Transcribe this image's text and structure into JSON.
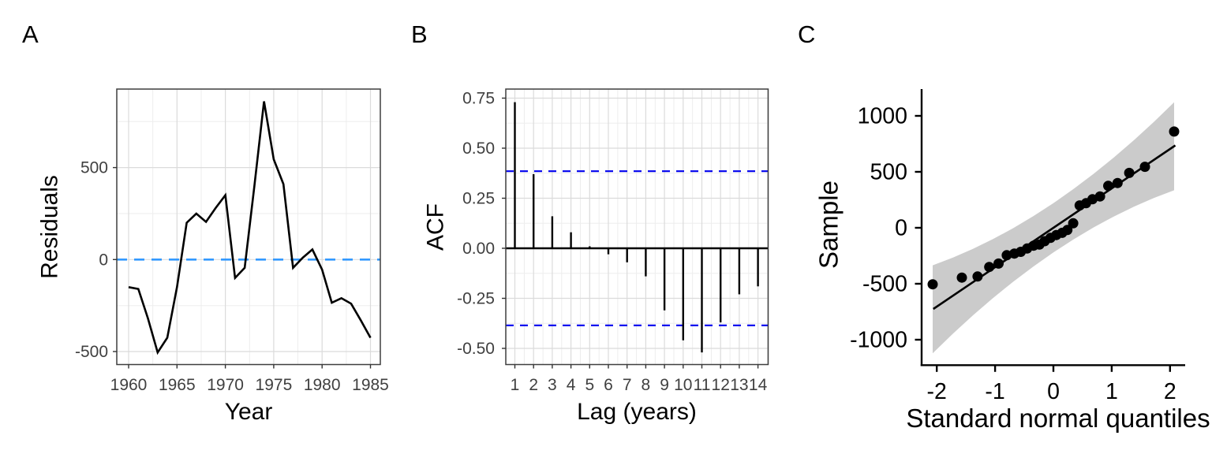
{
  "figure": {
    "background": "#FFFFFF"
  },
  "colors": {
    "series": "#000000",
    "grid_major": "#DBDBDB",
    "grid_minor": "#EDEDED",
    "panel_border": "#3F3F3F",
    "tick_mark": "#333333",
    "a_reference": "#3399FF",
    "b_reference": "#0000EE",
    "band": "#CBCBCB"
  },
  "chart_data": [
    {
      "panel_label": "A",
      "type": "line",
      "title": "",
      "xlabel": "Year",
      "ylabel": "Residuals",
      "x": [
        1960,
        1961,
        1962,
        1963,
        1964,
        1965,
        1966,
        1967,
        1968,
        1969,
        1970,
        1971,
        1972,
        1973,
        1974,
        1975,
        1976,
        1977,
        1978,
        1979,
        1980,
        1981,
        1982,
        1983,
        1984,
        1985
      ],
      "values": [
        -150,
        -160,
        -320,
        -505,
        -425,
        -150,
        200,
        250,
        205,
        280,
        350,
        -100,
        -45,
        400,
        860,
        545,
        410,
        -45,
        10,
        55,
        -55,
        -235,
        -210,
        -240,
        -330,
        -425
      ],
      "x_ticks": {
        "values": [
          1960,
          1965,
          1970,
          1975,
          1980,
          1985
        ],
        "labels": [
          "1960",
          "1965",
          "1970",
          "1975",
          "1980",
          "1985"
        ]
      },
      "y_ticks": {
        "values": [
          500,
          0,
          -500
        ],
        "labels": [
          "500",
          "0",
          "-500"
        ]
      },
      "x_minor": [
        1962.5,
        1967.5,
        1972.5,
        1977.5,
        1982.5
      ],
      "y_minor": [
        750,
        250,
        -250
      ],
      "reference_line": {
        "y": 0,
        "style": "dashed",
        "color": "#3399FF"
      },
      "xlim": [
        1958.8,
        1986.0
      ],
      "ylim": [
        -575,
        925
      ],
      "grid": true,
      "legend": "none"
    },
    {
      "panel_label": "B",
      "type": "bar",
      "title": "",
      "xlabel": "Lag (years)",
      "ylabel": "ACF",
      "categories": [
        1,
        2,
        3,
        4,
        5,
        6,
        7,
        8,
        9,
        10,
        11,
        12,
        13,
        14
      ],
      "values": [
        0.73,
        0.37,
        0.16,
        0.08,
        0.01,
        -0.03,
        -0.07,
        -0.14,
        -0.31,
        -0.46,
        -0.52,
        -0.37,
        -0.23,
        -0.19
      ],
      "x_ticks": {
        "values": [
          1,
          2,
          3,
          4,
          5,
          6,
          7,
          8,
          9,
          10,
          11,
          12,
          13,
          14
        ],
        "labels": [
          "1",
          "2",
          "3",
          "4",
          "5",
          "6",
          "7",
          "8",
          "9",
          "10",
          "11",
          "12",
          "13",
          "14"
        ]
      },
      "y_ticks": {
        "values": [
          0.75,
          0.5,
          0.25,
          0.0,
          -0.25,
          -0.5
        ],
        "labels": [
          "0.75",
          "0.50",
          "0.25",
          "0.00",
          "-0.25",
          "-0.50"
        ]
      },
      "x_minor": [
        1.5,
        2.5,
        3.5,
        4.5,
        5.5,
        6.5,
        7.5,
        8.5,
        9.5,
        10.5,
        11.5,
        12.5,
        13.5,
        14.5
      ],
      "y_minor": [
        0.625,
        0.375,
        0.125,
        -0.125,
        -0.375
      ],
      "significance_bounds": {
        "upper": 0.385,
        "lower": -0.385,
        "style": "dashed",
        "color": "#0000EE"
      },
      "zero_line": true,
      "ylim": [
        -0.59,
        0.8
      ],
      "grid": true,
      "legend": "none"
    },
    {
      "panel_label": "C",
      "type": "scatter",
      "title": "",
      "xlabel": "Standard normal quantiles",
      "ylabel": "Sample",
      "x": [
        -2.07,
        -1.57,
        -1.3,
        -1.1,
        -0.94,
        -0.8,
        -0.67,
        -0.56,
        -0.45,
        -0.34,
        -0.24,
        -0.15,
        -0.05,
        0.05,
        0.15,
        0.24,
        0.34,
        0.45,
        0.56,
        0.67,
        0.8,
        0.94,
        1.1,
        1.3,
        1.57,
        2.07
      ],
      "y": [
        -505,
        -445,
        -435,
        -350,
        -320,
        -245,
        -230,
        -215,
        -185,
        -160,
        -150,
        -120,
        -90,
        -65,
        -45,
        -20,
        40,
        200,
        220,
        255,
        280,
        375,
        400,
        490,
        545,
        860
      ],
      "x_ticks": {
        "values": [
          -2,
          -1,
          0,
          1,
          2
        ],
        "labels": [
          "-2",
          "-1",
          "0",
          "1",
          "2"
        ]
      },
      "y_ticks": {
        "values": [
          1000,
          500,
          0,
          -500,
          -1000
        ],
        "labels": [
          "1000",
          "500",
          "0",
          "-500",
          "-1000"
        ]
      },
      "fit_line": {
        "slope": 352,
        "intercept": 0,
        "x_range": [
          -2.06,
          2.09
        ],
        "color": "#000000"
      },
      "confidence_band": {
        "half_width_center": 220,
        "half_width_quad_coef": 40.4,
        "x_range": [
          -2.07,
          2.07
        ],
        "color": "#CBCBCB"
      },
      "xlim": [
        -2.35,
        2.3
      ],
      "ylim": [
        -1250,
        1250
      ],
      "grid": false,
      "legend": "none"
    }
  ]
}
